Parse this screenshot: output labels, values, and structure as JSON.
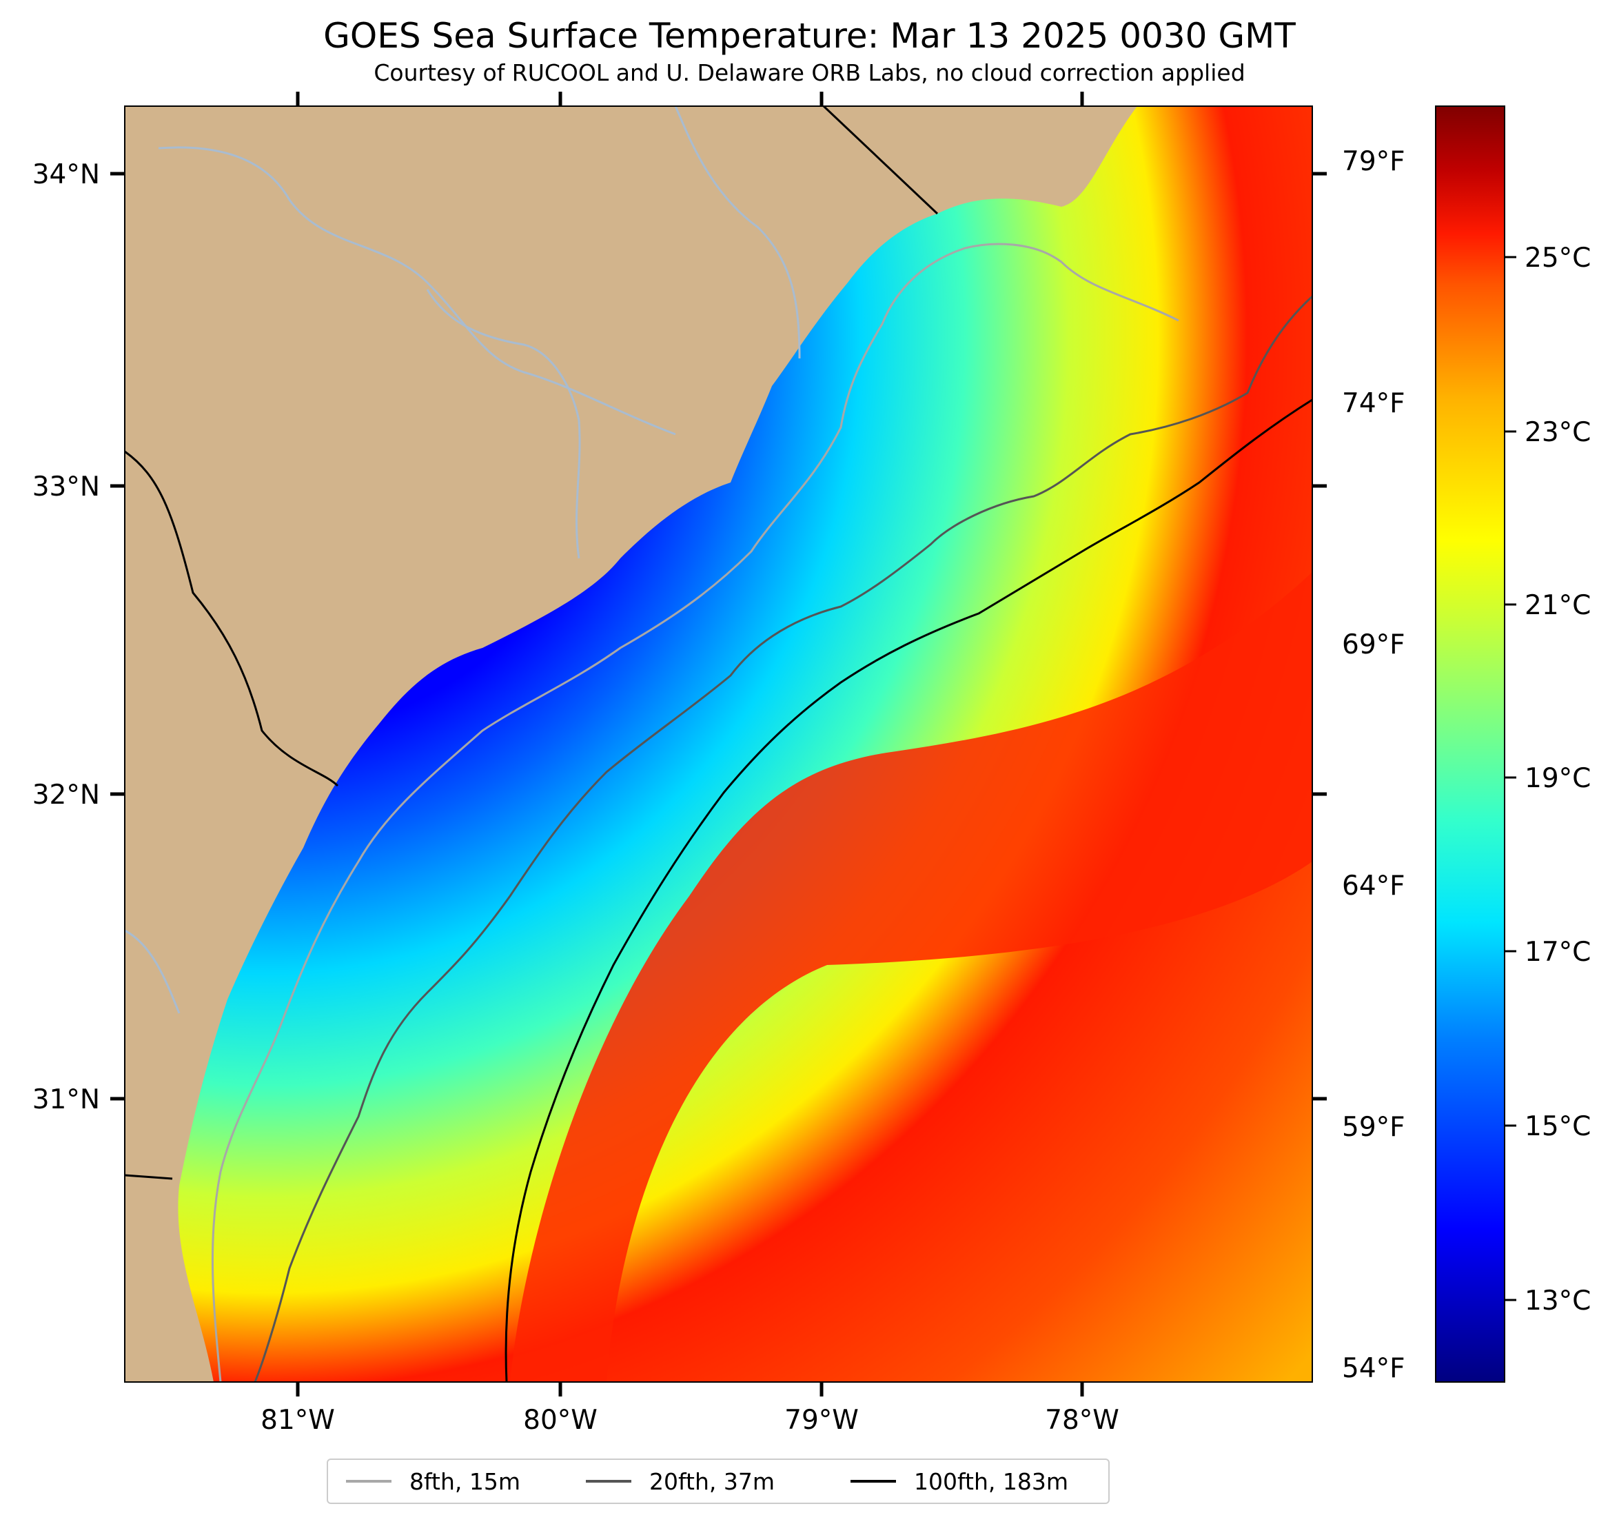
{
  "title": "GOES Sea Surface Temperature: Mar 13 2025 0030 GMT",
  "subtitle": "Courtesy of RUCOOL and U. Delaware ORB Labs, no cloud correction applied",
  "lat_labels": [
    "34°N",
    "33°N",
    "32°N",
    "31°N"
  ],
  "lon_labels": [
    "81°W",
    "80°W",
    "79°W",
    "78°W"
  ],
  "fahrenheit_labels": [
    "79°F",
    "74°F",
    "69°F",
    "64°F",
    "59°F",
    "54°F"
  ],
  "celsius_labels": [
    "25°C",
    "23°C",
    "21°C",
    "19°C",
    "17°C",
    "15°C",
    "13°C"
  ],
  "legend": [
    {
      "label": "8fth, 15m",
      "color": "#a8a8a8"
    },
    {
      "label": "20fth, 37m",
      "color": "#555555"
    },
    {
      "label": "100fth, 183m",
      "color": "#000000"
    }
  ],
  "colors": {
    "land": "#d2b48c",
    "river": "#a9bcd0",
    "colormap": [
      "#000080",
      "#0000ff",
      "#0080ff",
      "#00e5ff",
      "#33ffcc",
      "#80ff80",
      "#ccff33",
      "#ffff00",
      "#ffb300",
      "#ff5500",
      "#ff1a00",
      "#c00000",
      "#800000"
    ]
  }
}
